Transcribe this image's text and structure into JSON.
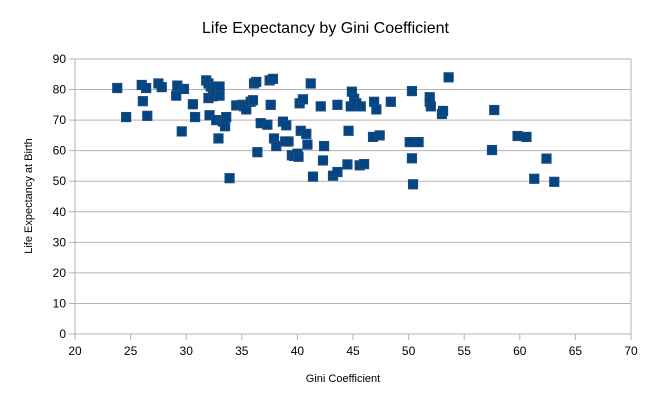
{
  "chart_data": {
    "type": "scatter",
    "title": "Life Expectancy by Gini Coefficient",
    "xlabel": "Gini Coefficient",
    "ylabel": "Life Expectancy at Birth",
    "xlim": [
      20,
      70
    ],
    "ylim": [
      0,
      90
    ],
    "xticks": [
      20,
      25,
      30,
      35,
      40,
      45,
      50,
      55,
      60,
      65,
      70
    ],
    "yticks": [
      0,
      10,
      20,
      30,
      40,
      50,
      60,
      70,
      80,
      90
    ],
    "grid": "horizontal",
    "legend": "none",
    "marker_color": "#004586",
    "points": [
      [
        23.8,
        80.5
      ],
      [
        24.6,
        71
      ],
      [
        26,
        81.5
      ],
      [
        26.1,
        76.2
      ],
      [
        26.4,
        80.5
      ],
      [
        26.5,
        71.4
      ],
      [
        27.5,
        82
      ],
      [
        27.8,
        80.8
      ],
      [
        29.1,
        78
      ],
      [
        29.2,
        81.3
      ],
      [
        29.6,
        66.3
      ],
      [
        29.8,
        80.2
      ],
      [
        30.6,
        75.2
      ],
      [
        30.8,
        71
      ],
      [
        31.8,
        83
      ],
      [
        32,
        82
      ],
      [
        32,
        77.2
      ],
      [
        32.1,
        71.6
      ],
      [
        32.2,
        81
      ],
      [
        32.4,
        77.8
      ],
      [
        32.5,
        80.9
      ],
      [
        32.6,
        79
      ],
      [
        32.7,
        70
      ],
      [
        32.9,
        64
      ],
      [
        33,
        81
      ],
      [
        33,
        78
      ],
      [
        33.3,
        69.5
      ],
      [
        33.5,
        68
      ],
      [
        33.6,
        71
      ],
      [
        33.9,
        51
      ],
      [
        34.5,
        74.8
      ],
      [
        35,
        75
      ],
      [
        35.2,
        74.5
      ],
      [
        35.4,
        73.5
      ],
      [
        35.8,
        76
      ],
      [
        36,
        76.5
      ],
      [
        36.1,
        82
      ],
      [
        36.3,
        82.5
      ],
      [
        36.4,
        59.5
      ],
      [
        36.7,
        69
      ],
      [
        37.3,
        68.5
      ],
      [
        37.5,
        83
      ],
      [
        37.6,
        75
      ],
      [
        37.8,
        83.5
      ],
      [
        37.9,
        64
      ],
      [
        38.1,
        61.5
      ],
      [
        38.7,
        69.5
      ],
      [
        38.9,
        63
      ],
      [
        39,
        68.3
      ],
      [
        39.2,
        63
      ],
      [
        39.5,
        58.5
      ],
      [
        39.7,
        58.3
      ],
      [
        40,
        59
      ],
      [
        40.1,
        58
      ],
      [
        40.2,
        75.5
      ],
      [
        40.3,
        66.5
      ],
      [
        40.5,
        76.8
      ],
      [
        40.8,
        65.5
      ],
      [
        40.9,
        62
      ],
      [
        41.2,
        82
      ],
      [
        41.4,
        51.5
      ],
      [
        42.1,
        74.5
      ],
      [
        42.3,
        56.8
      ],
      [
        42.4,
        61.5
      ],
      [
        43.2,
        51.8
      ],
      [
        43.6,
        75
      ],
      [
        43.6,
        53
      ],
      [
        44.5,
        55.5
      ],
      [
        44.6,
        66.5
      ],
      [
        44.8,
        74.5
      ],
      [
        44.9,
        79.3
      ],
      [
        45.1,
        77
      ],
      [
        45.3,
        75.5
      ],
      [
        45.6,
        55.2
      ],
      [
        45.7,
        74.5
      ],
      [
        46,
        55.6
      ],
      [
        46.8,
        64.5
      ],
      [
        46.9,
        76
      ],
      [
        47.1,
        73.5
      ],
      [
        47.4,
        65
      ],
      [
        48.4,
        76
      ],
      [
        50.1,
        62.8
      ],
      [
        50.3,
        79.5
      ],
      [
        50.3,
        57.5
      ],
      [
        50.4,
        49
      ],
      [
        50.9,
        62.8
      ],
      [
        51.9,
        77.5
      ],
      [
        51.9,
        76
      ],
      [
        52,
        74.5
      ],
      [
        53,
        72
      ],
      [
        53.1,
        73
      ],
      [
        53.6,
        84
      ],
      [
        57.5,
        60.2
      ],
      [
        57.7,
        73.3
      ],
      [
        59.8,
        64.8
      ],
      [
        60.6,
        64.5
      ],
      [
        61.3,
        50.8
      ],
      [
        62.4,
        57.4
      ],
      [
        63.1,
        49.8
      ]
    ]
  }
}
